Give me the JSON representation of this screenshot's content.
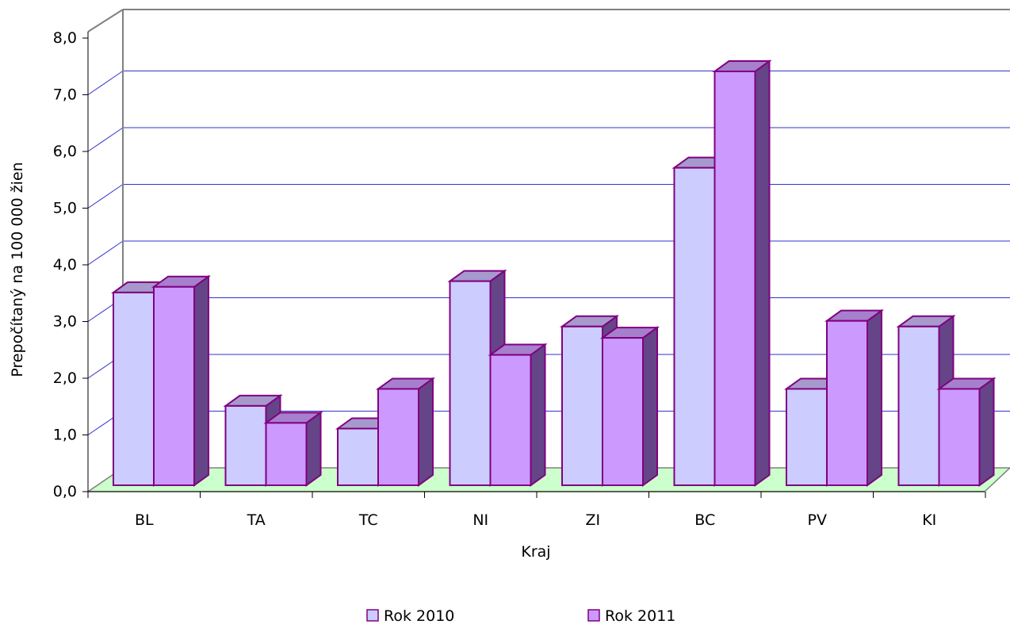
{
  "chart_data": {
    "type": "bar",
    "style": "3d-clustered-column",
    "title": "",
    "xlabel": "Kraj",
    "ylabel": "Prepočítaný na 100 000 žien",
    "ylim": [
      0,
      8
    ],
    "ytick_labels": [
      "0,0",
      "1,0",
      "2,0",
      "3,0",
      "4,0",
      "5,0",
      "6,0",
      "7,0",
      "8,0"
    ],
    "categories": [
      "BL",
      "TA",
      "TC",
      "NI",
      "ZI",
      "BC",
      "PV",
      "KI"
    ],
    "series": [
      {
        "name": "Rok 2010",
        "color": "#ccccff",
        "values": [
          3.4,
          1.4,
          1.0,
          3.6,
          2.8,
          5.6,
          1.7,
          2.8
        ]
      },
      {
        "name": "Rok 2011",
        "color": "#cc99ff",
        "values": [
          3.5,
          1.1,
          1.7,
          2.3,
          2.6,
          7.3,
          2.9,
          1.7
        ]
      }
    ],
    "grid": true,
    "legend_position": "bottom",
    "colors": {
      "gridline": "#3333cc",
      "bar_outline": "#800080",
      "bar_side": "#664488",
      "floor": "#ccffcc",
      "wall_axis": "#808080"
    }
  }
}
